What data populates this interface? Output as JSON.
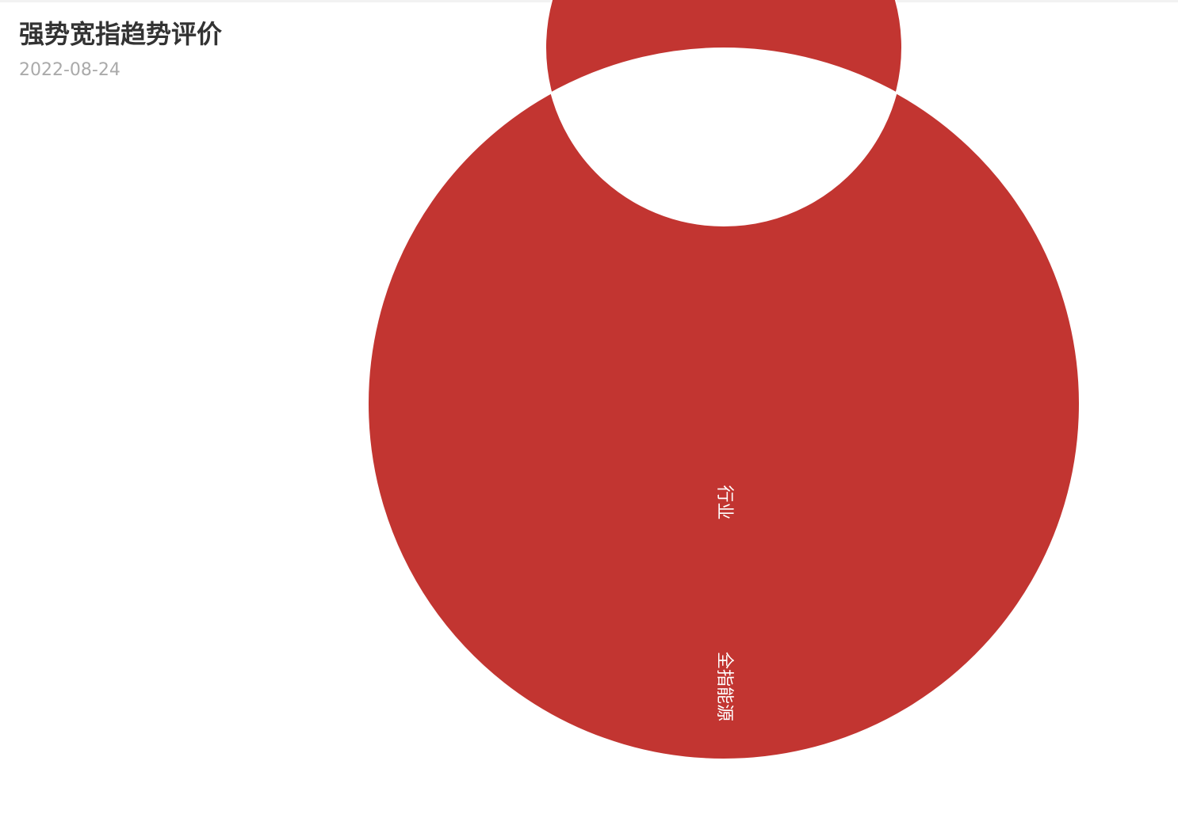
{
  "header": {
    "title": "强势宽指趋势评价",
    "date": "2022-08-24"
  },
  "chart_data": {
    "type": "pie",
    "title": "强势宽指趋势评价",
    "subtitle": "2022-08-24",
    "rings": [
      {
        "level": "inner",
        "slices": [
          {
            "name": "行业",
            "value": 1,
            "color": "#c23531"
          }
        ]
      },
      {
        "level": "outer",
        "slices": [
          {
            "name": "全指能源",
            "value": 1,
            "color": "#c23531"
          }
        ]
      }
    ],
    "legend": "none"
  }
}
